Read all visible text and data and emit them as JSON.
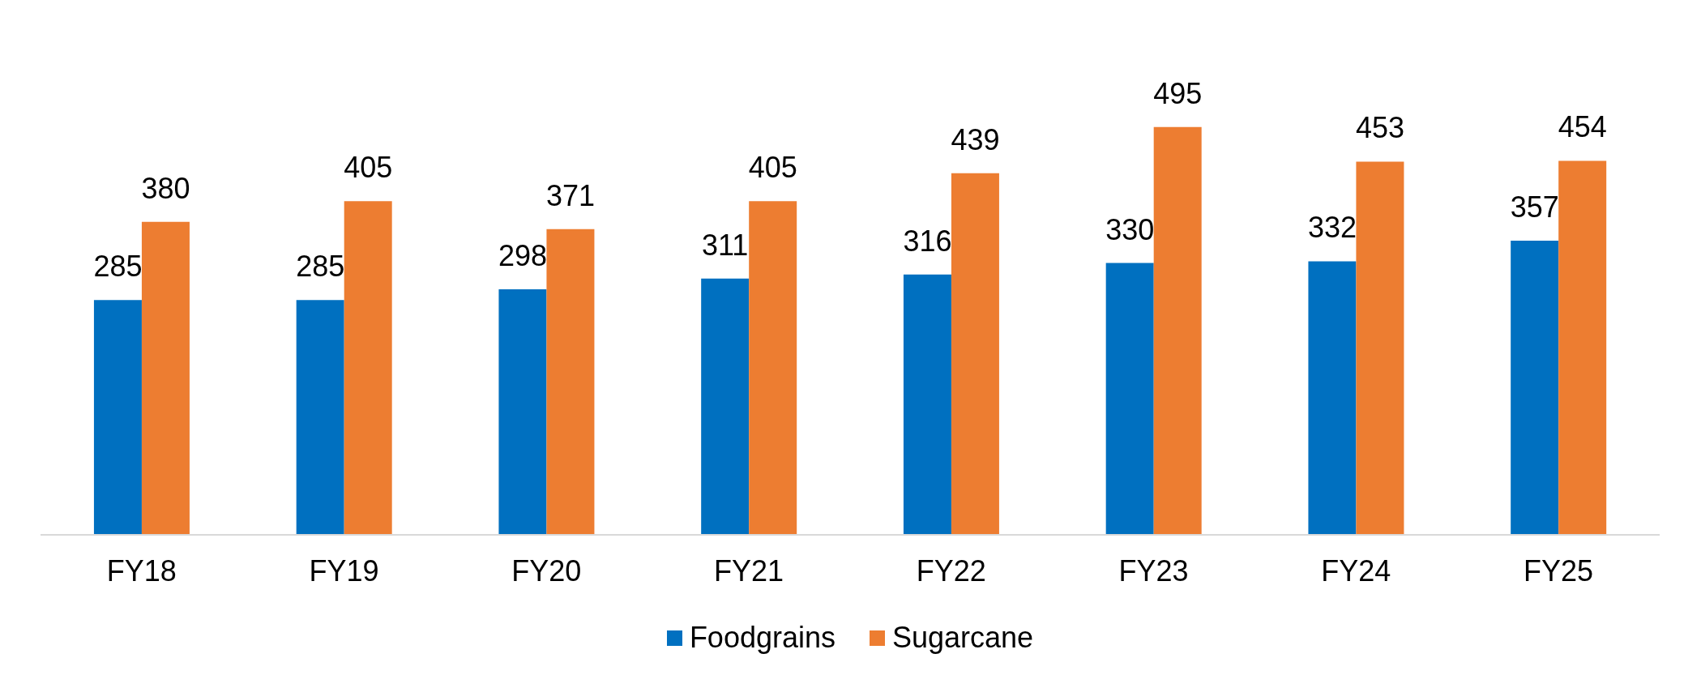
{
  "chart_data": {
    "type": "bar",
    "categories": [
      "FY18",
      "FY19",
      "FY20",
      "FY21",
      "FY22",
      "FY23",
      "FY24",
      "FY25"
    ],
    "series": [
      {
        "name": "Foodgrains",
        "color": "#0070c0",
        "values": [
          285,
          285,
          298,
          311,
          316,
          330,
          332,
          357
        ]
      },
      {
        "name": "Sugarcane",
        "color": "#ed7d31",
        "values": [
          380,
          405,
          371,
          405,
          439,
          495,
          453,
          454
        ]
      }
    ],
    "tick_labels": "x",
    "data_labels": true,
    "legend": "bottom"
  }
}
